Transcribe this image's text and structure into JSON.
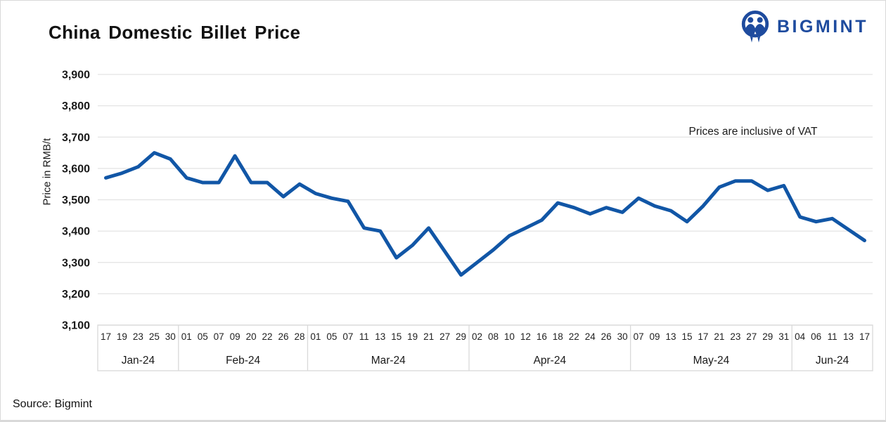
{
  "header": {
    "title": "China Domestic Billet Price",
    "brand": "BIGMINT"
  },
  "footer": {
    "source": "Source: Bigmint"
  },
  "colors": {
    "line": "#1156a6",
    "brand_blue": "#1e4b9e",
    "gridline": "#e3e3e3",
    "axis_border": "#d9d9d9",
    "text": "#1a1a1a"
  },
  "chart_data": {
    "type": "line",
    "title": "China Domestic Billet Price",
    "ylabel": "Price in RMB/t",
    "annotation": "Prices are inclusive of VAT",
    "ylim": [
      3100,
      3900
    ],
    "ytick_step": 100,
    "ytick_labels": [
      "3,900",
      "3,800",
      "3,700",
      "3,600",
      "3,500",
      "3,400",
      "3,300",
      "3,200",
      "3,100"
    ],
    "ytick_values": [
      3900,
      3800,
      3700,
      3600,
      3500,
      3400,
      3300,
      3200,
      3100
    ],
    "grid": "horizontal",
    "legend": "none",
    "series_name": "Billet Price",
    "months": [
      {
        "label": "Jan-24",
        "days": [
          "17",
          "19",
          "23",
          "25",
          "30"
        ],
        "values": [
          3570,
          3585,
          3605,
          3650,
          3630
        ]
      },
      {
        "label": "Feb-24",
        "days": [
          "01",
          "05",
          "07",
          "09",
          "20",
          "22",
          "26",
          "28"
        ],
        "values": [
          3570,
          3555,
          3555,
          3640,
          3555,
          3555,
          3510,
          3550
        ]
      },
      {
        "label": "Mar-24",
        "days": [
          "01",
          "05",
          "07",
          "11",
          "13",
          "15",
          "19",
          "21",
          "27",
          "29"
        ],
        "values": [
          3520,
          3505,
          3495,
          3410,
          3400,
          3315,
          3355,
          3410,
          3335,
          3260
        ]
      },
      {
        "label": "Apr-24",
        "days": [
          "02",
          "08",
          "10",
          "12",
          "16",
          "18",
          "22",
          "24",
          "26",
          "30"
        ],
        "values": [
          3300,
          3340,
          3385,
          3410,
          3435,
          3490,
          3475,
          3455,
          3475,
          3460
        ]
      },
      {
        "label": "May-24",
        "days": [
          "07",
          "09",
          "13",
          "15",
          "17",
          "21",
          "23",
          "27",
          "29",
          "31"
        ],
        "values": [
          3505,
          3480,
          3465,
          3430,
          3480,
          3540,
          3560,
          3560,
          3530,
          3545
        ]
      },
      {
        "label": "Jun-24",
        "days": [
          "04",
          "06",
          "11",
          "13",
          "17"
        ],
        "values": [
          3445,
          3430,
          3440,
          3405,
          3370
        ]
      }
    ]
  }
}
